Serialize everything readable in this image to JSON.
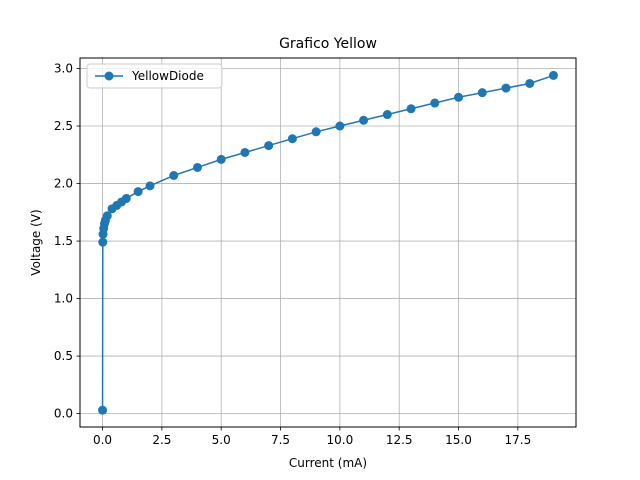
{
  "chart_data": {
    "type": "line",
    "title": "Grafico Yellow",
    "xlabel": "Current (mA)",
    "ylabel": "Voltage (V)",
    "xlim": [
      -0.95,
      19.95
    ],
    "ylim": [
      -0.1165,
      3.0915
    ],
    "xticks": [
      0,
      2.5,
      5,
      7.5,
      10,
      12.5,
      15,
      17.5
    ],
    "xtick_labels": [
      "0.0",
      "2.5",
      "5.0",
      "7.5",
      "10.0",
      "12.5",
      "15.0",
      "17.5"
    ],
    "yticks": [
      0,
      0.5,
      1.0,
      1.5,
      2.0,
      2.5,
      3.0
    ],
    "ytick_labels": [
      "0.0",
      "0.5",
      "1.0",
      "1.5",
      "2.0",
      "2.5",
      "3.0"
    ],
    "grid": true,
    "legend_position": "top-left",
    "series": [
      {
        "name": "YellowDiode",
        "color": "#1f77b4",
        "marker": "circle",
        "x": [
          0.0,
          0.01,
          0.02,
          0.05,
          0.08,
          0.12,
          0.2,
          0.4,
          0.6,
          0.8,
          1.0,
          1.5,
          2.0,
          3.0,
          4.0,
          5.0,
          6.0,
          7.0,
          8.0,
          9.0,
          10.0,
          11.0,
          12.0,
          13.0,
          14.0,
          15.0,
          16.0,
          17.0,
          18.0,
          19.0
        ],
        "y": [
          0.03,
          1.49,
          1.56,
          1.61,
          1.65,
          1.68,
          1.72,
          1.78,
          1.81,
          1.84,
          1.87,
          1.93,
          1.98,
          2.07,
          2.14,
          2.21,
          2.27,
          2.33,
          2.39,
          2.45,
          2.5,
          2.55,
          2.6,
          2.65,
          2.7,
          2.75,
          2.79,
          2.83,
          2.87,
          2.94
        ]
      }
    ]
  }
}
